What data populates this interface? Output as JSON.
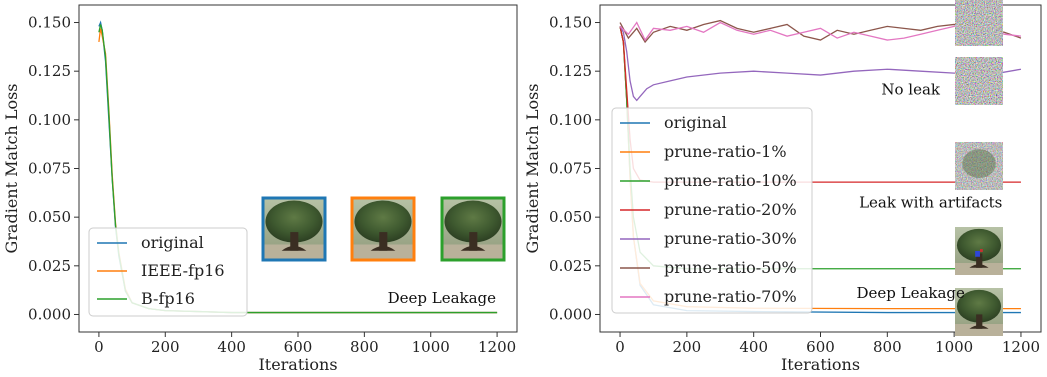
{
  "chart_data": [
    {
      "type": "line",
      "xlabel": "Iterations",
      "ylabel": "Gradient Match Loss",
      "xlim": [
        -60,
        1260
      ],
      "ylim": [
        -0.009,
        0.159
      ],
      "xticks": [
        0,
        200,
        400,
        600,
        800,
        1000,
        1200
      ],
      "yticks": [
        0.0,
        0.025,
        0.05,
        0.075,
        0.1,
        0.125,
        0.15
      ],
      "ytick_labels": [
        "0.000",
        "0.025",
        "0.050",
        "0.075",
        "0.100",
        "0.125",
        "0.150"
      ],
      "grid": false,
      "legend": "bottom-left",
      "series": [
        {
          "name": "original",
          "color": "#1f77b4",
          "x": [
            0,
            5,
            10,
            20,
            30,
            40,
            50,
            60,
            80,
            100,
            150,
            200,
            300,
            400,
            600,
            800,
            1000,
            1200
          ],
          "y": [
            0.148,
            0.15,
            0.146,
            0.13,
            0.1,
            0.07,
            0.045,
            0.03,
            0.012,
            0.006,
            0.003,
            0.002,
            0.0015,
            0.001,
            0.001,
            0.001,
            0.001,
            0.001
          ]
        },
        {
          "name": "IEEE-fp16",
          "color": "#ff7f0e",
          "x": [
            0,
            5,
            10,
            20,
            30,
            40,
            50,
            60,
            80,
            100,
            150,
            200,
            300,
            400,
            600,
            800,
            1000,
            1200
          ],
          "y": [
            0.14,
            0.147,
            0.143,
            0.134,
            0.105,
            0.072,
            0.047,
            0.032,
            0.013,
            0.006,
            0.003,
            0.002,
            0.0015,
            0.001,
            0.001,
            0.001,
            0.001,
            0.001
          ]
        },
        {
          "name": "B-fp16",
          "color": "#2ca02c",
          "x": [
            0,
            5,
            10,
            20,
            30,
            40,
            50,
            60,
            80,
            100,
            150,
            200,
            300,
            400,
            600,
            800,
            1000,
            1200
          ],
          "y": [
            0.145,
            0.149,
            0.146,
            0.132,
            0.103,
            0.07,
            0.046,
            0.031,
            0.012,
            0.006,
            0.003,
            0.002,
            0.0015,
            0.001,
            0.001,
            0.001,
            0.001,
            0.001
          ]
        }
      ],
      "annotations": [
        {
          "text": "Deep Leakage",
          "x": 870,
          "y": 0.006
        }
      ],
      "thumbnails": [
        {
          "border": "#1f77b4",
          "kind": "tree"
        },
        {
          "border": "#ff7f0e",
          "kind": "tree"
        },
        {
          "border": "#2ca02c",
          "kind": "tree"
        }
      ]
    },
    {
      "type": "line",
      "xlabel": "Iterations",
      "ylabel": "Gradient Match Loss",
      "xlim": [
        -60,
        1260
      ],
      "ylim": [
        -0.009,
        0.159
      ],
      "xticks": [
        0,
        200,
        400,
        600,
        800,
        1000,
        1200
      ],
      "yticks": [
        0.0,
        0.025,
        0.05,
        0.075,
        0.1,
        0.125,
        0.15
      ],
      "ytick_labels": [
        "0.000",
        "0.025",
        "0.050",
        "0.075",
        "0.100",
        "0.125",
        "0.150"
      ],
      "grid": false,
      "legend": "bottom-left",
      "series": [
        {
          "name": "original",
          "color": "#1f77b4",
          "x": [
            0,
            10,
            20,
            30,
            40,
            60,
            100,
            200,
            400,
            800,
            1200
          ],
          "y": [
            0.148,
            0.14,
            0.11,
            0.07,
            0.04,
            0.015,
            0.005,
            0.002,
            0.0015,
            0.001,
            0.001
          ]
        },
        {
          "name": "prune-ratio-1%",
          "color": "#ff7f0e",
          "x": [
            0,
            10,
            20,
            30,
            40,
            60,
            100,
            200,
            400,
            800,
            1200
          ],
          "y": [
            0.148,
            0.14,
            0.11,
            0.07,
            0.04,
            0.016,
            0.007,
            0.004,
            0.0032,
            0.003,
            0.003
          ]
        },
        {
          "name": "prune-ratio-10%",
          "color": "#2ca02c",
          "x": [
            0,
            10,
            20,
            30,
            40,
            60,
            100,
            200,
            400,
            800,
            1200
          ],
          "y": [
            0.148,
            0.14,
            0.11,
            0.075,
            0.05,
            0.032,
            0.025,
            0.0235,
            0.0235,
            0.0235,
            0.0235
          ]
        },
        {
          "name": "prune-ratio-20%",
          "color": "#d62728",
          "x": [
            0,
            10,
            20,
            30,
            40,
            60,
            100,
            200,
            400,
            800,
            1200
          ],
          "y": [
            0.148,
            0.14,
            0.115,
            0.09,
            0.075,
            0.069,
            0.068,
            0.068,
            0.068,
            0.068,
            0.068
          ]
        },
        {
          "name": "prune-ratio-30%",
          "color": "#9467bd",
          "x": [
            0,
            10,
            20,
            30,
            40,
            50,
            60,
            80,
            100,
            150,
            200,
            300,
            400,
            500,
            600,
            700,
            800,
            900,
            1000,
            1100,
            1200
          ],
          "y": [
            0.148,
            0.145,
            0.135,
            0.12,
            0.112,
            0.11,
            0.112,
            0.116,
            0.118,
            0.12,
            0.122,
            0.124,
            0.125,
            0.124,
            0.123,
            0.125,
            0.126,
            0.125,
            0.124,
            0.123,
            0.126
          ]
        },
        {
          "name": "prune-ratio-50%",
          "color": "#8c564b",
          "x": [
            0,
            25,
            50,
            75,
            100,
            150,
            200,
            250,
            300,
            350,
            400,
            450,
            500,
            550,
            600,
            650,
            700,
            750,
            800,
            850,
            900,
            950,
            1000,
            1050,
            1100,
            1150,
            1200
          ],
          "y": [
            0.15,
            0.142,
            0.147,
            0.14,
            0.145,
            0.148,
            0.146,
            0.149,
            0.151,
            0.147,
            0.145,
            0.147,
            0.149,
            0.143,
            0.141,
            0.146,
            0.144,
            0.146,
            0.148,
            0.147,
            0.146,
            0.148,
            0.149,
            0.147,
            0.146,
            0.145,
            0.142
          ]
        },
        {
          "name": "prune-ratio-70%",
          "color": "#e377c2",
          "x": [
            0,
            25,
            50,
            75,
            100,
            150,
            200,
            250,
            300,
            350,
            400,
            450,
            500,
            550,
            600,
            650,
            700,
            750,
            800,
            850,
            900,
            950,
            1000,
            1050,
            1100,
            1150,
            1200
          ],
          "y": [
            0.148,
            0.144,
            0.15,
            0.141,
            0.147,
            0.146,
            0.148,
            0.145,
            0.15,
            0.146,
            0.144,
            0.146,
            0.143,
            0.145,
            0.147,
            0.142,
            0.145,
            0.143,
            0.141,
            0.142,
            0.144,
            0.146,
            0.148,
            0.149,
            0.147,
            0.144,
            0.143
          ]
        }
      ],
      "annotations": [
        {
          "text": "No leak",
          "x": 870,
          "y": 0.113
        },
        {
          "text": "Leak with artifacts",
          "x": 930,
          "y": 0.055
        },
        {
          "text": "Deep Leakage",
          "x": 870,
          "y": 0.0085
        }
      ],
      "thumbnails": [
        {
          "border": "none",
          "kind": "noise"
        },
        {
          "border": "none",
          "kind": "noise"
        },
        {
          "border": "none",
          "kind": "noise-tree"
        },
        {
          "border": "none",
          "kind": "tree-artifact"
        },
        {
          "border": "none",
          "kind": "tree"
        }
      ]
    }
  ]
}
